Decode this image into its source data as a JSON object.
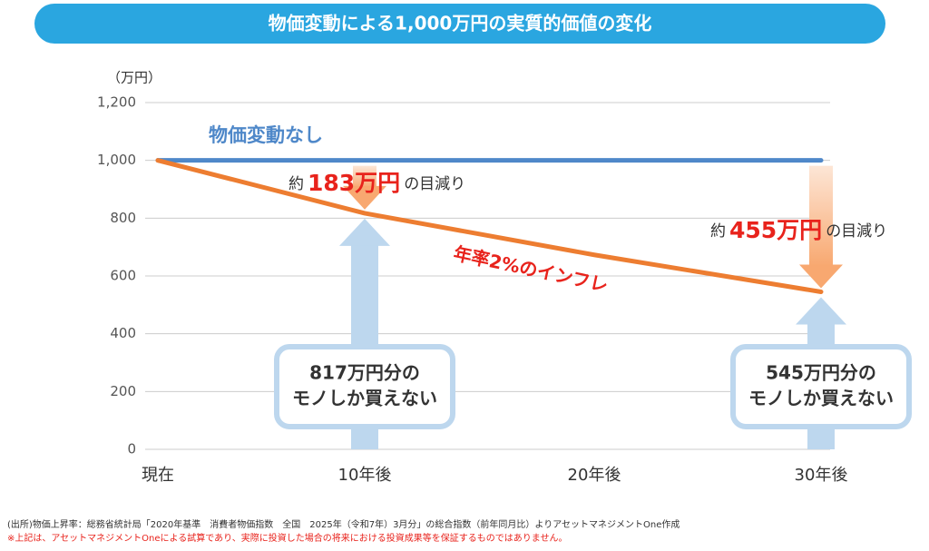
{
  "chart_data": {
    "type": "line",
    "title": "物価変動による1,000万円の実質的価値の変化",
    "y_unit": "（万円）",
    "categories": [
      "現在",
      "10年後",
      "20年後",
      "30年後"
    ],
    "series": [
      {
        "name": "物価変動なし",
        "color": "#4f88c9",
        "values": [
          1000,
          1000,
          1000,
          1000
        ]
      },
      {
        "name": "年率2%のインフレ",
        "color": "#ed7d31",
        "values": [
          1000,
          817,
          673,
          545
        ]
      }
    ],
    "ylim": [
      0,
      1200
    ],
    "yticks": [
      0,
      200,
      400,
      600,
      800,
      {
        "value": 1000,
        "label": "1,000"
      },
      {
        "value": 1200,
        "label": "1,200"
      }
    ],
    "grid": true,
    "annotations": [
      {
        "prefix": "約",
        "amount": "183万円",
        "suffix": "の目減り"
      },
      {
        "prefix": "約",
        "amount": "455万円",
        "suffix": "の目減り"
      }
    ],
    "boxes": [
      {
        "lines": [
          "817万円分の",
          "モノしか買えない"
        ]
      },
      {
        "lines": [
          "545万円分の",
          "モノしか買えない"
        ]
      }
    ],
    "notes": [
      "(出所)物価上昇率：総務省統計局「2020年基準　消費者物価指数　全国　2025年（令和7年）3月分」の総合指数（前年同月比）よりアセットマネジメントOne作成",
      "※上記は、アセットマネジメントOneによる試算であり、実際に投資した場合の将来における投資成果等を保証するものではありません。"
    ]
  }
}
